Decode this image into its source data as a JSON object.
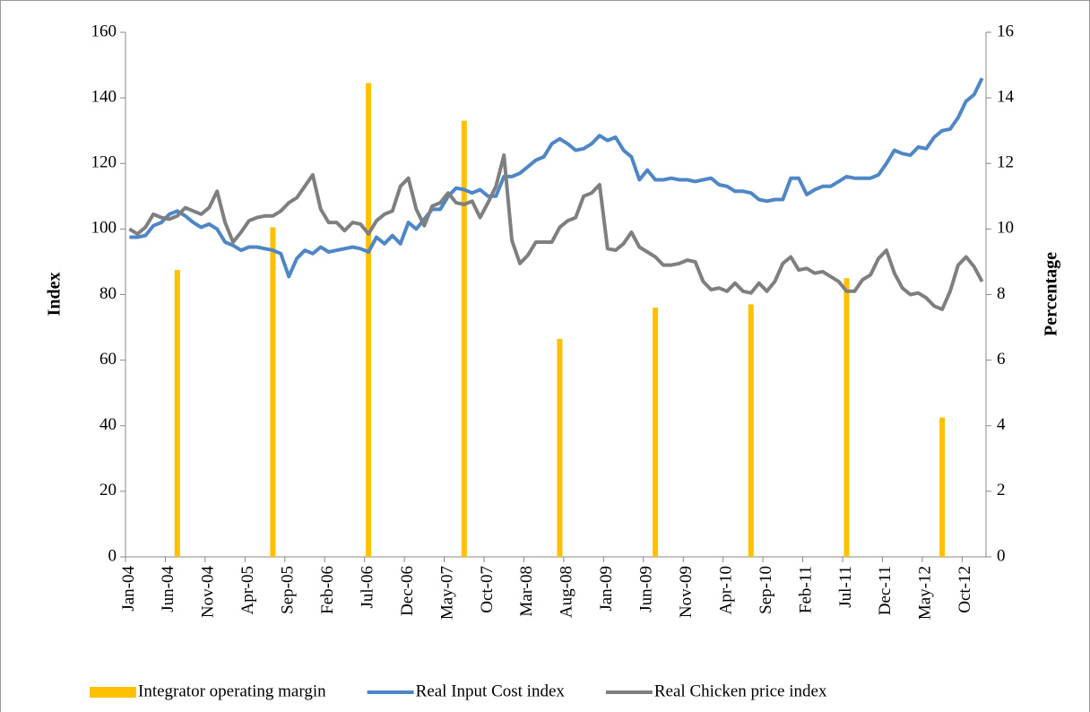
{
  "chart_data": {
    "type": "bar-line",
    "categories": [
      "Jan-04",
      null,
      null,
      null,
      null,
      "Jun-04",
      null,
      null,
      null,
      null,
      "Nov-04",
      null,
      null,
      null,
      null,
      "Apr-05",
      null,
      null,
      null,
      null,
      "Sep-05",
      null,
      null,
      null,
      null,
      "Feb-06",
      null,
      null,
      null,
      null,
      "Jul-06",
      null,
      null,
      null,
      null,
      "Dec-06",
      null,
      null,
      null,
      null,
      "May-07",
      null,
      null,
      null,
      null,
      "Oct-07",
      null,
      null,
      null,
      null,
      "Mar-08",
      null,
      null,
      null,
      null,
      "Aug-08",
      null,
      null,
      null,
      null,
      "Jan-09",
      null,
      null,
      null,
      null,
      "Jun-09",
      null,
      null,
      null,
      null,
      "Nov-09",
      null,
      null,
      null,
      null,
      "Apr-10",
      null,
      null,
      null,
      null,
      "Sep-10",
      null,
      null,
      null,
      null,
      "Feb-11",
      null,
      null,
      null,
      null,
      "Jul-11",
      null,
      null,
      null,
      null,
      "Dec-11",
      null,
      null,
      null,
      null,
      "May-12",
      null,
      null,
      null,
      null,
      "Oct-12",
      null,
      null
    ],
    "series": [
      {
        "name": "Integrator operating margin",
        "color": "#ffc000",
        "axis": "y2",
        "kind": "bar",
        "values": [
          null,
          null,
          null,
          null,
          null,
          null,
          8.75,
          null,
          null,
          null,
          null,
          null,
          null,
          null,
          null,
          null,
          null,
          null,
          10.05,
          null,
          null,
          null,
          null,
          null,
          null,
          null,
          null,
          null,
          null,
          null,
          14.45,
          null,
          null,
          null,
          null,
          null,
          null,
          null,
          null,
          null,
          null,
          null,
          13.3,
          null,
          null,
          null,
          null,
          null,
          null,
          null,
          null,
          null,
          null,
          null,
          6.65,
          null,
          null,
          null,
          null,
          null,
          null,
          null,
          null,
          null,
          null,
          null,
          7.6,
          null,
          null,
          null,
          null,
          null,
          null,
          null,
          null,
          null,
          null,
          null,
          7.7,
          null,
          null,
          null,
          null,
          null,
          null,
          null,
          null,
          null,
          null,
          null,
          8.5,
          null,
          null,
          null,
          null,
          null,
          null,
          null,
          null,
          null,
          null,
          null,
          4.25,
          null,
          null,
          null,
          null,
          null
        ]
      },
      {
        "name": "Real Input Cost index",
        "color": "#4f86c6",
        "kind": "line",
        "values": [
          97.5,
          97.5,
          98,
          101,
          102,
          104.5,
          105.5,
          104,
          102,
          100.5,
          101.5,
          100,
          96,
          95,
          93.5,
          94.5,
          94.5,
          94,
          93.5,
          92.5,
          85.5,
          91,
          93.5,
          92.5,
          94.5,
          93,
          93.5,
          94,
          94.5,
          94,
          93,
          97.5,
          95.5,
          98,
          95.5,
          102,
          100,
          103,
          106,
          106,
          110,
          112.5,
          112,
          111,
          112,
          110,
          110,
          116,
          116,
          117,
          119,
          121,
          122,
          126,
          127.5,
          126,
          124,
          124.5,
          126,
          128.5,
          127,
          128,
          124,
          122,
          115,
          118,
          115,
          115,
          115.5,
          115,
          115,
          114.5,
          115,
          115.5,
          113.5,
          113,
          111.5,
          111.5,
          111,
          109,
          108.5,
          109,
          109,
          115.5,
          115.5,
          110.5,
          112,
          113,
          113,
          114.5,
          116,
          115.5,
          115.5,
          115.5,
          116.5,
          120,
          124,
          123,
          122.5,
          125,
          124.5,
          128,
          130,
          130.5,
          134,
          139,
          141,
          146
        ]
      },
      {
        "name": "Real Chicken price index",
        "color": "#7f7f7f",
        "kind": "line",
        "values": [
          100,
          98.5,
          100.5,
          104.5,
          103.5,
          103,
          104,
          106.5,
          105.5,
          104.5,
          106.5,
          111.5,
          102,
          96,
          99,
          102.5,
          103.5,
          104,
          104,
          105.5,
          108,
          109.5,
          113,
          116.5,
          106,
          102,
          102,
          99.5,
          102,
          101.5,
          98.5,
          102.5,
          104.5,
          105.5,
          113,
          115.5,
          106,
          101,
          107,
          108,
          111,
          108,
          107.5,
          108.5,
          103.5,
          108,
          113,
          122.5,
          96.5,
          89.5,
          92,
          96,
          96,
          96,
          100.5,
          102.5,
          103.5,
          110,
          111,
          113.5,
          94,
          93.5,
          95.5,
          99,
          94.5,
          93,
          91.5,
          89,
          89,
          89.5,
          90.5,
          90,
          84,
          81.5,
          82,
          81,
          83.5,
          81,
          80.5,
          83.5,
          81,
          84,
          89.5,
          91.5,
          87.5,
          88,
          86.5,
          87,
          85.5,
          84,
          81,
          81,
          84.5,
          86,
          91,
          93.5,
          86.5,
          82,
          80,
          80.5,
          79,
          76.5,
          75.5,
          81,
          89,
          91.5,
          88.5,
          84
        ]
      }
    ],
    "ylabel": "Index",
    "y2label": "Percentage",
    "ylim": [
      0,
      160
    ],
    "yticks": [
      0,
      20,
      40,
      60,
      80,
      100,
      120,
      140,
      160
    ],
    "y2lim": [
      0,
      16
    ],
    "y2ticks": [
      0,
      2,
      4,
      6,
      8,
      10,
      12,
      14,
      16
    ],
    "legend": "bottom"
  }
}
